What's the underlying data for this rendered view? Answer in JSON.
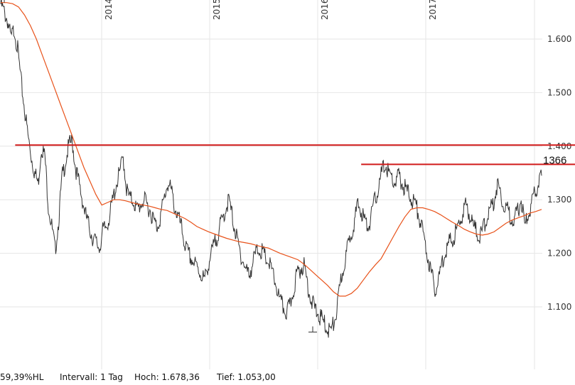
{
  "chart_data": {
    "type": "line",
    "x_tick_labels": [
      "2014",
      "2015",
      "2016",
      "2017"
    ],
    "y_ticks": [
      1100,
      1200,
      1300,
      1400,
      1500,
      1600
    ],
    "y_tick_labels": [
      "1.100",
      "1.200",
      "1.300",
      "1.400",
      "1.500",
      "1.600"
    ],
    "ylim": [
      1000,
      1700
    ],
    "grid": true,
    "series": [
      {
        "values": [
          1665,
          1650,
          1635,
          1600,
          1620,
          1580,
          1520,
          1470,
          1420,
          1380,
          1350,
          1330,
          1400,
          1380,
          1290,
          1250,
          1205,
          1260,
          1340,
          1370,
          1400,
          1410,
          1360,
          1330,
          1300,
          1270,
          1250,
          1230,
          1220,
          1210,
          1240,
          1250,
          1270,
          1300,
          1330,
          1350,
          1380,
          1320,
          1300,
          1300,
          1280,
          1290,
          1300,
          1290,
          1280,
          1260,
          1250,
          1270,
          1300,
          1330,
          1320,
          1290,
          1270,
          1250,
          1220,
          1200,
          1190,
          1180,
          1170,
          1160,
          1150,
          1180,
          1200,
          1220,
          1240,
          1260,
          1280,
          1300,
          1270,
          1240,
          1210,
          1190,
          1170,
          1160,
          1180,
          1200,
          1210,
          1200,
          1190,
          1180,
          1160,
          1140,
          1110,
          1100,
          1090,
          1100,
          1130,
          1160,
          1170,
          1180,
          1150,
          1120,
          1100,
          1090,
          1080,
          1070,
          1060,
          1055,
          1070,
          1100,
          1150,
          1180,
          1210,
          1240,
          1260,
          1290,
          1280,
          1260,
          1250,
          1270,
          1300,
          1320,
          1350,
          1368,
          1350,
          1340,
          1330,
          1345,
          1330,
          1320,
          1310,
          1300,
          1290,
          1270,
          1240,
          1210,
          1180,
          1150,
          1130,
          1160,
          1190,
          1210,
          1220,
          1230,
          1240,
          1260,
          1280,
          1290,
          1270,
          1250,
          1240,
          1230,
          1250,
          1270,
          1280,
          1300,
          1330,
          1310,
          1290,
          1280,
          1270,
          1260,
          1280,
          1300,
          1250,
          1270,
          1290,
          1310,
          1330,
          1345
        ],
        "color": "#333333"
      },
      {
        "values": [
          1668,
          1668,
          1666,
          1660,
          1645,
          1625,
          1600,
          1570,
          1540,
          1510,
          1480,
          1450,
          1420,
          1390,
          1360,
          1335,
          1310,
          1290,
          1295,
          1300,
          1300,
          1298,
          1295,
          1292,
          1290,
          1288,
          1285,
          1282,
          1280,
          1275,
          1270,
          1265,
          1258,
          1250,
          1245,
          1240,
          1236,
          1232,
          1228,
          1225,
          1222,
          1220,
          1218,
          1215,
          1212,
          1210,
          1205,
          1200,
          1196,
          1192,
          1188,
          1180,
          1170,
          1160,
          1150,
          1140,
          1128,
          1120,
          1120,
          1125,
          1135,
          1150,
          1165,
          1178,
          1190,
          1210,
          1230,
          1250,
          1268,
          1282,
          1285,
          1285,
          1282,
          1278,
          1272,
          1265,
          1258,
          1252,
          1245,
          1240,
          1236,
          1234,
          1236,
          1240,
          1248,
          1256,
          1262,
          1266,
          1270,
          1275,
          1278,
          1282
        ],
        "color": "#e8521a"
      }
    ],
    "horizontal_lines": [
      {
        "value": 1402,
        "x_start_fraction": 0.028,
        "color": "#d11a1a"
      },
      {
        "value": 1366,
        "x_start_fraction": 0.666,
        "color": "#d11a1a",
        "label": "1366"
      }
    ],
    "high_marker_value": 1678.36,
    "low_marker_value": 1053.0
  },
  "footer": {
    "perf": "59,39%HL",
    "interval": "Intervall: 1 Tag",
    "high": "Hoch:  1.678,36",
    "low": "Tief:  1.053,00"
  }
}
